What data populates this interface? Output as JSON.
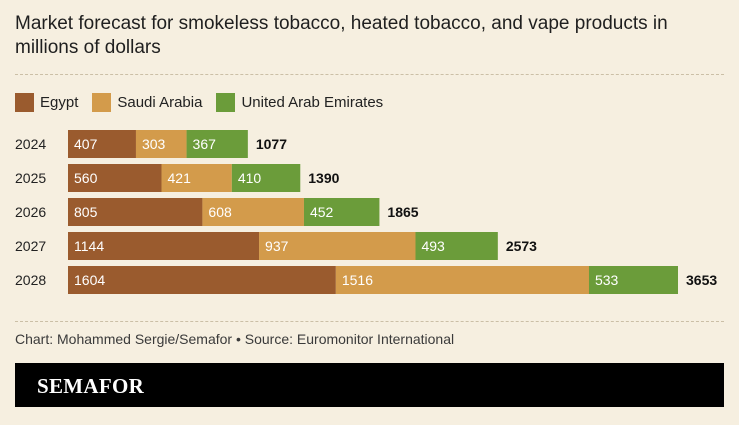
{
  "title": "Market forecast for smokeless tobacco, heated tobacco, and vape products in millions of dollars",
  "legend": [
    {
      "name": "Egypt",
      "color": "#9a5b2e"
    },
    {
      "name": "Saudi Arabia",
      "color": "#d39b4b"
    },
    {
      "name": "United Arab Emirates",
      "color": "#6b9c3a"
    }
  ],
  "chart_data": {
    "type": "bar",
    "stacked": true,
    "orientation": "horizontal",
    "categories": [
      "2024",
      "2025",
      "2026",
      "2027",
      "2028"
    ],
    "series": [
      {
        "name": "Egypt",
        "color": "#9a5b2e",
        "values": [
          407,
          560,
          805,
          1144,
          1604
        ]
      },
      {
        "name": "Saudi Arabia",
        "color": "#d39b4b",
        "values": [
          303,
          421,
          608,
          937,
          1516
        ]
      },
      {
        "name": "United Arab Emirates",
        "color": "#6b9c3a",
        "values": [
          367,
          410,
          452,
          493,
          533
        ]
      }
    ],
    "totals": [
      1077,
      1390,
      1865,
      2573,
      3653
    ],
    "xlim": [
      0,
      3653
    ],
    "grid": false,
    "legend_position": "top-left"
  },
  "footer": {
    "credit": "Chart: Mohammed Sergie/Semafor • Source: Euromonitor International",
    "brand": "SEMAFOR"
  }
}
